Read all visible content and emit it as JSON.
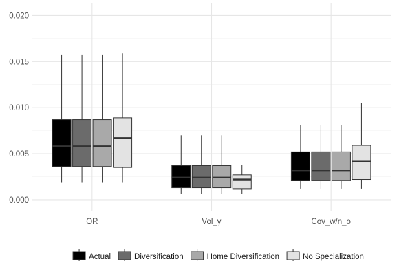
{
  "chart_data": {
    "type": "boxplot",
    "title": "",
    "xlabel": "",
    "ylabel": "",
    "ylim": [
      -0.0012,
      0.0213
    ],
    "y_ticks": [
      0.0,
      0.005,
      0.01,
      0.015,
      0.02
    ],
    "y_tick_labels": [
      "0.000",
      "0.005",
      "0.010",
      "0.015",
      "0.020"
    ],
    "grid": true,
    "legend_position": "bottom",
    "categories": [
      "OR",
      "Vol_γ",
      "Cov_w/n_o"
    ],
    "series": [
      {
        "name": "Actual",
        "color": "#000000",
        "boxes": [
          {
            "min": 0.0019,
            "q1": 0.0036,
            "median": 0.0058,
            "q3": 0.0087,
            "max": 0.0157
          },
          {
            "min": 0.0006,
            "q1": 0.0013,
            "median": 0.0024,
            "q3": 0.0037,
            "max": 0.007
          },
          {
            "min": 0.0012,
            "q1": 0.0021,
            "median": 0.0032,
            "q3": 0.0052,
            "max": 0.0081
          }
        ]
      },
      {
        "name": "Diversification",
        "color": "#6b6b6b",
        "boxes": [
          {
            "min": 0.0019,
            "q1": 0.0036,
            "median": 0.0058,
            "q3": 0.0087,
            "max": 0.0157
          },
          {
            "min": 0.0006,
            "q1": 0.0013,
            "median": 0.0024,
            "q3": 0.0037,
            "max": 0.007
          },
          {
            "min": 0.0012,
            "q1": 0.0021,
            "median": 0.0032,
            "q3": 0.0052,
            "max": 0.0081
          }
        ]
      },
      {
        "name": "Home Diversification",
        "color": "#a9a9a9",
        "boxes": [
          {
            "min": 0.0019,
            "q1": 0.0036,
            "median": 0.0058,
            "q3": 0.0087,
            "max": 0.0157
          },
          {
            "min": 0.0006,
            "q1": 0.0013,
            "median": 0.0024,
            "q3": 0.0037,
            "max": 0.007
          },
          {
            "min": 0.0012,
            "q1": 0.0021,
            "median": 0.0032,
            "q3": 0.0052,
            "max": 0.0081
          }
        ]
      },
      {
        "name": "No Specialization",
        "color": "#e3e3e3",
        "boxes": [
          {
            "min": 0.0019,
            "q1": 0.0035,
            "median": 0.0067,
            "q3": 0.0089,
            "max": 0.0159
          },
          {
            "min": 0.0006,
            "q1": 0.0012,
            "median": 0.0022,
            "q3": 0.0027,
            "max": 0.0038
          },
          {
            "min": 0.0012,
            "q1": 0.0022,
            "median": 0.0042,
            "q3": 0.0059,
            "max": 0.0105
          }
        ]
      }
    ]
  }
}
